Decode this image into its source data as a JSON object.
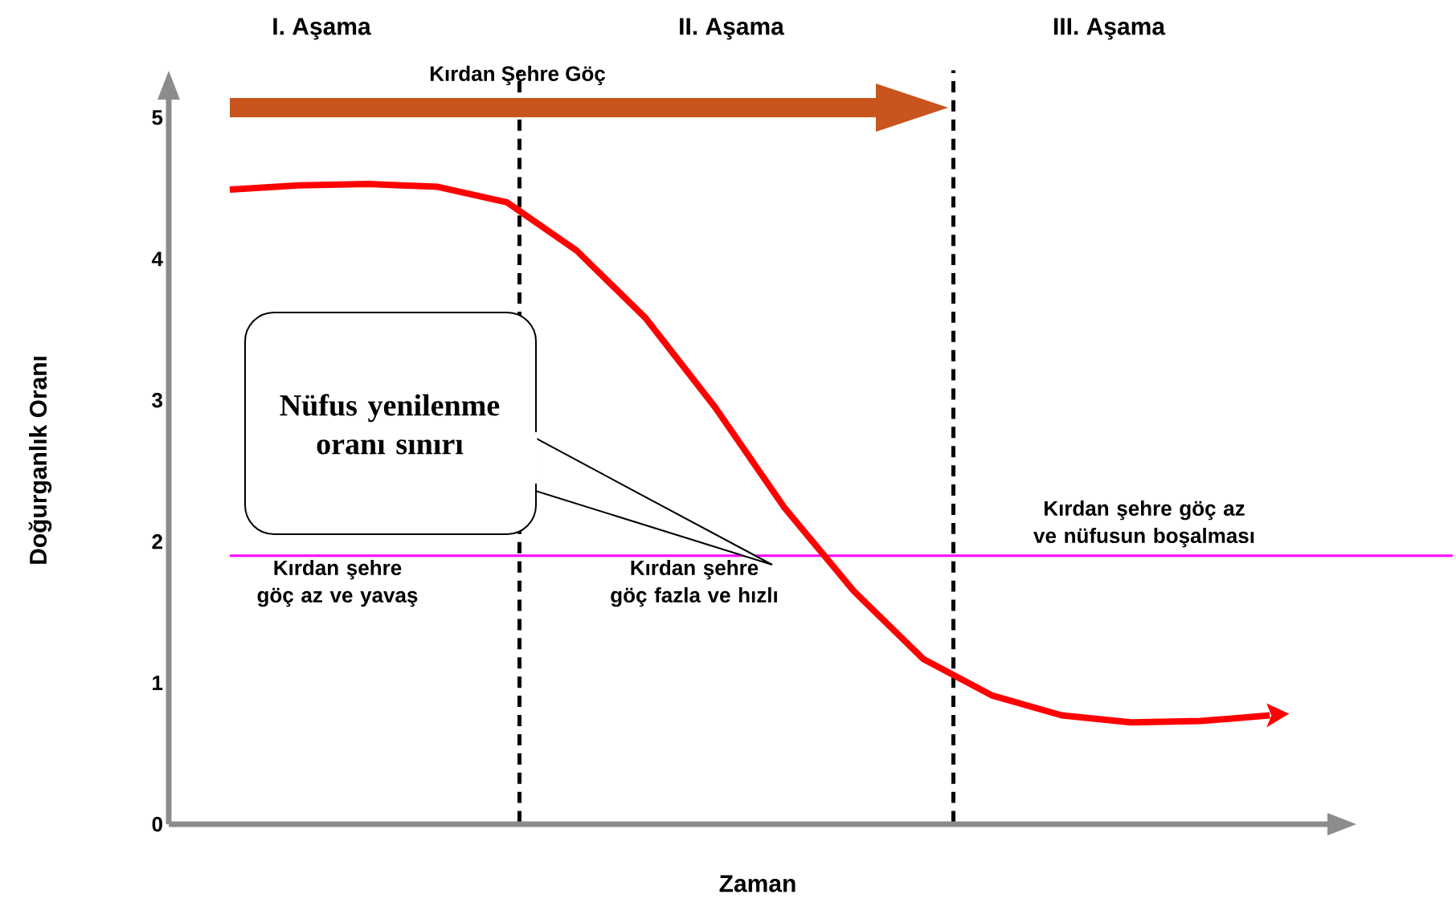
{
  "chart_data": {
    "type": "line",
    "xlabel": "Zaman",
    "ylabel": "Doğurganlık Oranı",
    "categories": [
      null,
      null,
      null,
      null,
      null,
      null,
      null,
      null,
      null,
      null,
      null,
      null,
      null,
      null,
      null,
      null
    ],
    "series": [
      {
        "color": "#ff0000",
        "values": [
          4.49,
          4.52,
          4.53,
          4.51,
          4.4,
          4.06,
          3.58,
          2.95,
          2.24,
          1.65,
          1.17,
          0.91,
          0.77,
          0.72,
          0.73,
          0.77
        ]
      }
    ],
    "ylim": [
      0,
      5.15
    ],
    "yticks": [
      0,
      1,
      2,
      3,
      4,
      5
    ],
    "tick_labels": "y",
    "grid": false,
    "marker": "none",
    "line_style": "solid",
    "ref_lines": [
      {
        "axis": "y",
        "value": 1.9,
        "color": "#ff00ff",
        "line_style": "solid"
      }
    ],
    "annotations": [
      "Kırdan Şehre Göç",
      "I. Aşama",
      "II. Aşama",
      "III. Aşama",
      "Kırdan şehre göç az ve yavaş",
      "Kırdan şehre göç fazla ve hızlı",
      "Kırdan şehre göç az ve nüfusun boşalması",
      "Nüfus yenilenme oranı sınırı"
    ]
  }
}
